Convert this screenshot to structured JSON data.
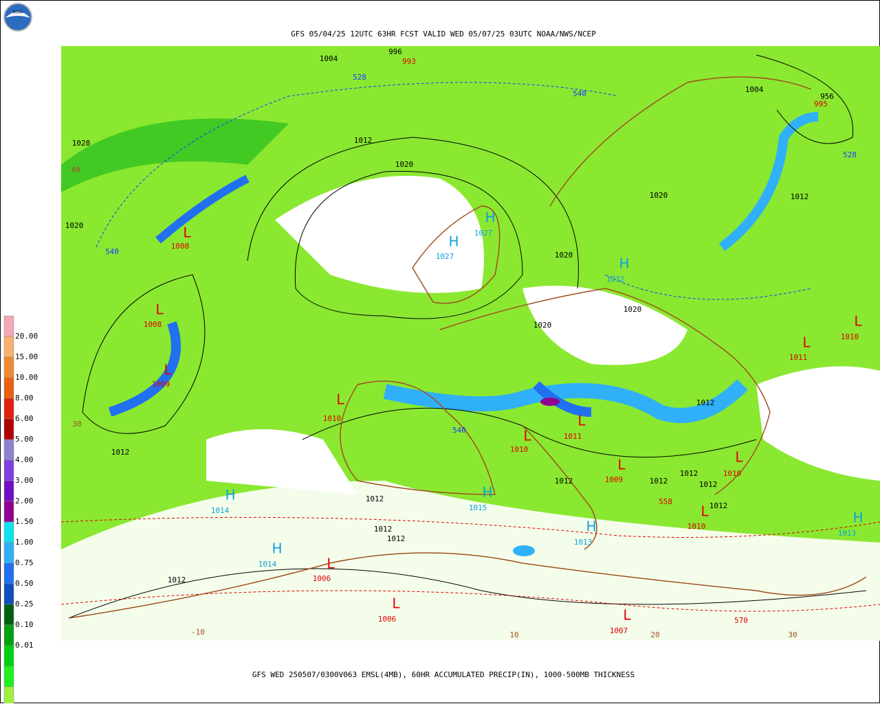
{
  "logo": {
    "text": "NOAA"
  },
  "header": {
    "title": "GFS 05/04/25 12UTC 63HR FCST VALID WED 05/07/25 03UTC NOAA/NWS/NCEP"
  },
  "footer": {
    "caption": "GFS WED 250507/0300V063 EMSL(4MB), 60HR ACCUMULATED PRECIP(IN), 1000-500MB THICKNESS"
  },
  "legend": {
    "labels": [
      "20.00",
      "15.00",
      "10.00",
      "8.00",
      "6.00",
      "5.00",
      "4.00",
      "3.00",
      "2.00",
      "1.50",
      "1.00",
      "0.75",
      "0.50",
      "0.25",
      "0.10",
      "0.01"
    ],
    "colors": [
      "#f4a8b8",
      "#f8b070",
      "#f08a30",
      "#e86010",
      "#e02010",
      "#b00000",
      "#9080d0",
      "#8040e0",
      "#7010c0",
      "#900090",
      "#10e0f0",
      "#30b0f8",
      "#2070f0",
      "#104ec0",
      "#006010",
      "#00a010",
      "#00d010",
      "#20f020",
      "#a0f040",
      "#ffffff"
    ]
  },
  "map": {
    "labels": [
      {
        "text": "1004",
        "color": "#000000"
      },
      {
        "text": "996",
        "color": "#000000"
      },
      {
        "text": "993",
        "color": "#e00000"
      },
      {
        "text": "528",
        "color": "#1040ff"
      },
      {
        "text": "1012",
        "color": "#000000"
      },
      {
        "text": "1028",
        "color": "#000000"
      },
      {
        "text": "40",
        "color": "#a05020"
      },
      {
        "text": "1020",
        "color": "#000000"
      },
      {
        "text": "540",
        "color": "#1040ff"
      },
      {
        "text": "1004",
        "color": "#000000"
      },
      {
        "text": "956",
        "color": "#000000"
      },
      {
        "text": "995",
        "color": "#e00000"
      },
      {
        "text": "528",
        "color": "#1040ff"
      },
      {
        "text": "1012",
        "color": "#000000"
      },
      {
        "text": "1020",
        "color": "#000000"
      },
      {
        "text": "L",
        "color": "#e00000"
      },
      {
        "text": "1008",
        "color": "#e00000"
      },
      {
        "text": "540",
        "color": "#1040ff"
      },
      {
        "text": "H",
        "color": "#10a0e0"
      },
      {
        "text": "1027",
        "color": "#10a0e0"
      },
      {
        "text": "H",
        "color": "#10a0e0"
      },
      {
        "text": "1027",
        "color": "#10a0e0"
      },
      {
        "text": "1020",
        "color": "#000000"
      },
      {
        "text": "1020",
        "color": "#000000"
      },
      {
        "text": "H",
        "color": "#10a0e0"
      },
      {
        "text": "1032",
        "color": "#10a0e0"
      },
      {
        "text": "1020",
        "color": "#000000"
      },
      {
        "text": "1020",
        "color": "#000000"
      },
      {
        "text": "L",
        "color": "#e00000"
      },
      {
        "text": "1008",
        "color": "#e00000"
      },
      {
        "text": "L",
        "color": "#e00000"
      },
      {
        "text": "1009",
        "color": "#e00000"
      },
      {
        "text": "L",
        "color": "#e00000"
      },
      {
        "text": "1010",
        "color": "#e00000"
      },
      {
        "text": "L",
        "color": "#e00000"
      },
      {
        "text": "1011",
        "color": "#e00000"
      },
      {
        "text": "30",
        "color": "#a05020"
      },
      {
        "text": "1012",
        "color": "#000000"
      },
      {
        "text": "L",
        "color": "#e00000"
      },
      {
        "text": "1010",
        "color": "#e00000"
      },
      {
        "text": "540",
        "color": "#1040ff"
      },
      {
        "text": "L",
        "color": "#e00000"
      },
      {
        "text": "1010",
        "color": "#e00000"
      },
      {
        "text": "L",
        "color": "#e00000"
      },
      {
        "text": "1011",
        "color": "#e00000"
      },
      {
        "text": "1012",
        "color": "#000000"
      },
      {
        "text": "1012",
        "color": "#000000"
      },
      {
        "text": "L",
        "color": "#e00000"
      },
      {
        "text": "1009",
        "color": "#e00000"
      },
      {
        "text": "1012",
        "color": "#000000"
      },
      {
        "text": "1012",
        "color": "#000000"
      },
      {
        "text": "1012",
        "color": "#000000"
      },
      {
        "text": "L",
        "color": "#e00000"
      },
      {
        "text": "1010",
        "color": "#e00000"
      },
      {
        "text": "1012",
        "color": "#000000"
      },
      {
        "text": "558",
        "color": "#e00000"
      },
      {
        "text": "L",
        "color": "#e00000"
      },
      {
        "text": "1010",
        "color": "#e00000"
      },
      {
        "text": "H",
        "color": "#10a0e0"
      },
      {
        "text": "1014",
        "color": "#10a0e0"
      },
      {
        "text": "1012",
        "color": "#000000"
      },
      {
        "text": "H",
        "color": "#10a0e0"
      },
      {
        "text": "1015",
        "color": "#10a0e0"
      },
      {
        "text": "1012",
        "color": "#000000"
      },
      {
        "text": "1012",
        "color": "#000000"
      },
      {
        "text": "H",
        "color": "#10a0e0"
      },
      {
        "text": "1013",
        "color": "#10a0e0"
      },
      {
        "text": "H",
        "color": "#10a0e0"
      },
      {
        "text": "1013",
        "color": "#10a0e0"
      },
      {
        "text": "H",
        "color": "#10a0e0"
      },
      {
        "text": "1014",
        "color": "#10a0e0"
      },
      {
        "text": "L",
        "color": "#e00000"
      },
      {
        "text": "1006",
        "color": "#e00000"
      },
      {
        "text": "1012",
        "color": "#000000"
      },
      {
        "text": "L",
        "color": "#e00000"
      },
      {
        "text": "1006",
        "color": "#e00000"
      },
      {
        "text": "L",
        "color": "#e00000"
      },
      {
        "text": "1007",
        "color": "#e00000"
      },
      {
        "text": "570",
        "color": "#e00000"
      },
      {
        "text": "-10",
        "color": "#a05020"
      },
      {
        "text": "10",
        "color": "#a05020"
      },
      {
        "text": "20",
        "color": "#a05020"
      },
      {
        "text": "30",
        "color": "#a05020"
      }
    ]
  }
}
